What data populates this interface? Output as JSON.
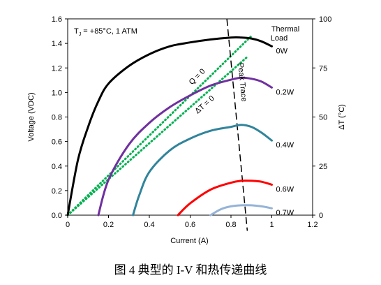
{
  "caption": "图 4 典型的 I-V 和热传递曲线",
  "chart_data": {
    "type": "line",
    "annotation": {
      "tj_prefix": "T",
      "tj_sub": "J",
      "tj_rest": " = +85°C, 1 ATM"
    },
    "xlabel": "Current (A)",
    "ylabel": "Voltage (VDC)",
    "y2label": "ΔT (°C)",
    "xlim": [
      0,
      1.2
    ],
    "ylim": [
      0,
      1.6
    ],
    "y2lim": [
      0,
      100
    ],
    "xticks": [
      "0",
      "0.2",
      "0.4",
      "0.6",
      "0.8",
      "1",
      "1.2"
    ],
    "yticks": [
      "0.0",
      "0.2",
      "0.4",
      "0.6",
      "0.8",
      "1.0",
      "1.2",
      "1.4",
      "1.6"
    ],
    "y2ticks": [
      "0",
      "25",
      "50",
      "75",
      "100"
    ],
    "legend_title_line1": "Thermal",
    "legend_title_line2": "Load",
    "series": [
      {
        "name": "0W",
        "color": "#000000",
        "axis": "right",
        "x": [
          0,
          0.05,
          0.1,
          0.15,
          0.2,
          0.3,
          0.4,
          0.5,
          0.6,
          0.7,
          0.8,
          0.85,
          0.9,
          0.95,
          1.0
        ],
        "y": [
          0,
          28,
          45,
          58,
          67,
          76,
          82,
          86,
          88,
          89.5,
          90.5,
          90.5,
          90,
          88.5,
          86
        ]
      },
      {
        "name": "0.2W",
        "color": "#7030A0",
        "axis": "right",
        "x": [
          0.15,
          0.2,
          0.3,
          0.4,
          0.5,
          0.6,
          0.7,
          0.8,
          0.85,
          0.9,
          0.95,
          1.0
        ],
        "y": [
          0,
          18,
          36,
          47,
          55,
          61,
          66,
          69,
          70,
          69.5,
          68,
          65
        ]
      },
      {
        "name": "0.4W",
        "color": "#31849B",
        "axis": "right",
        "x": [
          0.32,
          0.35,
          0.4,
          0.5,
          0.6,
          0.7,
          0.8,
          0.85,
          0.9,
          0.95,
          1.0
        ],
        "y": [
          0,
          10,
          22,
          33,
          39,
          43,
          45,
          46,
          45,
          42,
          38
        ]
      },
      {
        "name": "0.6W",
        "color": "#FF0000",
        "axis": "right",
        "x": [
          0.54,
          0.6,
          0.7,
          0.8,
          0.85,
          0.9,
          0.95,
          1.0
        ],
        "y": [
          0,
          6,
          13,
          16.5,
          17.5,
          17.5,
          17,
          15.5
        ]
      },
      {
        "name": "0.7W",
        "color": "#95B3D7",
        "axis": "right",
        "x": [
          0.7,
          0.75,
          0.8,
          0.85,
          0.9,
          0.95,
          1.0
        ],
        "y": [
          0,
          3,
          4.5,
          5,
          5,
          4.5,
          3.5
        ]
      }
    ],
    "lines": [
      {
        "name": "Q = 0",
        "color": "#00B050",
        "style": "dotted",
        "axis": "left",
        "x": [
          0,
          0.9
        ],
        "y": [
          0,
          1.46
        ]
      },
      {
        "name": "ΔT = 0",
        "color": "#00B050",
        "style": "dotted",
        "axis": "left",
        "x": [
          0,
          0.88
        ],
        "y": [
          0,
          1.29
        ]
      },
      {
        "name": "Peak Trace",
        "color": "#000000",
        "style": "dashed",
        "axis": "right",
        "x": [
          0.78,
          0.88
        ],
        "y": [
          100,
          -8
        ]
      }
    ]
  }
}
